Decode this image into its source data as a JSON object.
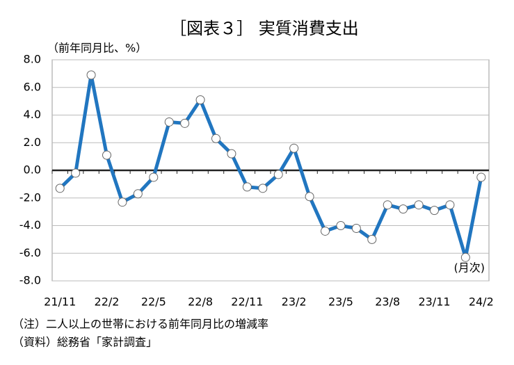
{
  "chart_data": {
    "type": "line",
    "title": "［図表３］ 実質消費支出",
    "y_axis_label": "（前年同月比、%）",
    "annotation": "(月次)",
    "notes": [
      "（注）二人以上の世帯における前年同月比の増減率",
      "（資料）総務省「家計調査」"
    ],
    "categories": [
      "21/11",
      null,
      null,
      "22/2",
      null,
      null,
      "22/5",
      null,
      null,
      "22/8",
      null,
      null,
      "22/11",
      null,
      null,
      "23/2",
      null,
      null,
      "23/5",
      null,
      null,
      "23/8",
      null,
      null,
      "23/11",
      null,
      null,
      "24/2"
    ],
    "series": [
      {
        "name": "実質消費支出",
        "color": "#2176c0",
        "values": [
          -1.3,
          -0.2,
          6.9,
          1.1,
          -2.3,
          -1.7,
          -0.5,
          3.5,
          3.4,
          5.1,
          2.3,
          1.2,
          -1.2,
          -1.3,
          -0.3,
          1.6,
          -1.9,
          -4.4,
          -4.0,
          -4.2,
          -5.0,
          -2.5,
          -2.8,
          -2.5,
          -2.9,
          -2.5,
          -6.3,
          -0.5
        ]
      }
    ],
    "ylim": [
      -8,
      8
    ],
    "yticks": [
      {
        "value": -8,
        "label": "-8.0"
      },
      {
        "value": -6,
        "label": "-6.0"
      },
      {
        "value": -4,
        "label": "-4.0"
      },
      {
        "value": -2,
        "label": "-2.0"
      },
      {
        "value": 0,
        "label": "0.0"
      },
      {
        "value": 2,
        "label": "2.0"
      },
      {
        "value": 4,
        "label": "4.0"
      },
      {
        "value": 6,
        "label": "6.0"
      },
      {
        "value": 8,
        "label": "8.0"
      }
    ],
    "grid": true
  }
}
